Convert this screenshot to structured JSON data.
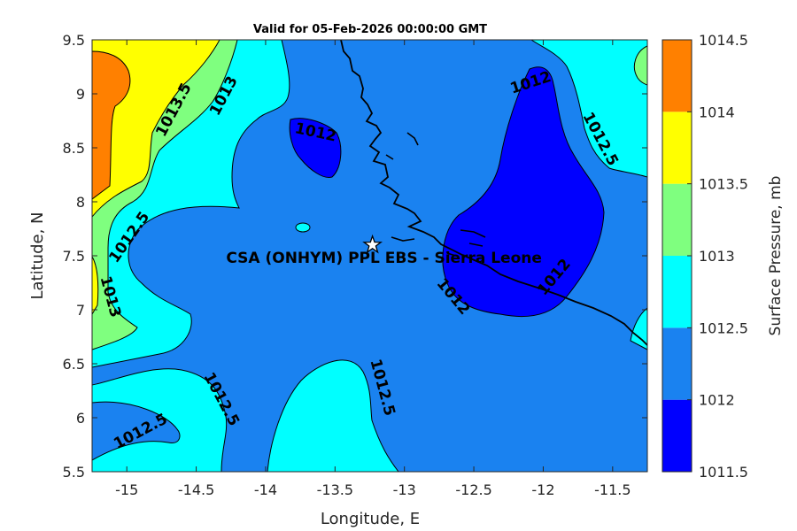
{
  "title": "Valid for 05-Feb-2026 00:00:00 GMT",
  "site_label": "CSA (ONHYM) PPL EBS - Sierra Leone",
  "site_marker_icon": "star-icon",
  "chart_data": {
    "type": "contour-map",
    "xlabel": "Longitude, E",
    "ylabel": "Latitude, N",
    "xlim": [
      -15.25,
      -11.25
    ],
    "ylim": [
      5.5,
      9.5
    ],
    "xticks": [
      -15,
      -14.5,
      -14,
      -13.5,
      -13,
      -12.5,
      -12,
      -11.5
    ],
    "yticks": [
      5.5,
      6,
      6.5,
      7,
      7.5,
      8,
      8.5,
      9,
      9.5
    ],
    "site": {
      "lon": -13.23,
      "lat": 7.6
    },
    "contour_labels": [
      {
        "text": "1013.5",
        "lon": -14.66,
        "lat": 8.85,
        "angle": -62
      },
      {
        "text": "1013",
        "lon": -14.3,
        "lat": 8.98,
        "angle": -62
      },
      {
        "text": "1012",
        "lon": -13.64,
        "lat": 8.64,
        "angle": 12
      },
      {
        "text": "1012",
        "lon": -12.09,
        "lat": 9.1,
        "angle": -18
      },
      {
        "text": "1012.5",
        "lon": -11.59,
        "lat": 8.58,
        "angle": 62
      },
      {
        "text": "1012.5",
        "lon": -14.98,
        "lat": 7.67,
        "angle": -55
      },
      {
        "text": "1013",
        "lon": -15.12,
        "lat": 7.12,
        "angle": 75
      },
      {
        "text": "1012",
        "lon": -12.65,
        "lat": 7.12,
        "angle": 50
      },
      {
        "text": "1012",
        "lon": -11.92,
        "lat": 7.3,
        "angle": -50
      },
      {
        "text": "1012.5",
        "lon": -14.32,
        "lat": 6.17,
        "angle": 62
      },
      {
        "text": "1012.5",
        "lon": -13.16,
        "lat": 6.28,
        "angle": 75
      },
      {
        "text": "1012.5",
        "lon": -14.9,
        "lat": 5.87,
        "angle": -28
      }
    ],
    "colorbar": {
      "label": "Surface Pressure, mb",
      "range": [
        1011.5,
        1014.5
      ],
      "ticks": [
        "1011.5",
        "1012",
        "1012.5",
        "1013",
        "1013.5",
        "1014",
        "1014.5"
      ],
      "levels": [
        {
          "from": 1011.5,
          "to": 1012,
          "color": "#0000ff"
        },
        {
          "from": 1012,
          "to": 1012.5,
          "color": "#1a82f0"
        },
        {
          "from": 1012.5,
          "to": 1013,
          "color": "#00ffff"
        },
        {
          "from": 1013,
          "to": 1013.5,
          "color": "#7fff7f"
        },
        {
          "from": 1013.5,
          "to": 1014,
          "color": "#ffff00"
        },
        {
          "from": 1014,
          "to": 1014.5,
          "color": "#ff8000"
        }
      ]
    },
    "colors": {
      "pressure_1011_5": "#0000ff",
      "pressure_1012": "#1a82f0",
      "pressure_1012_5": "#00ffff",
      "pressure_1013": "#7fff7f",
      "pressure_1013_5": "#ffff00",
      "pressure_1014": "#ff8000",
      "pressure_1014_5": "#ff0000"
    }
  }
}
